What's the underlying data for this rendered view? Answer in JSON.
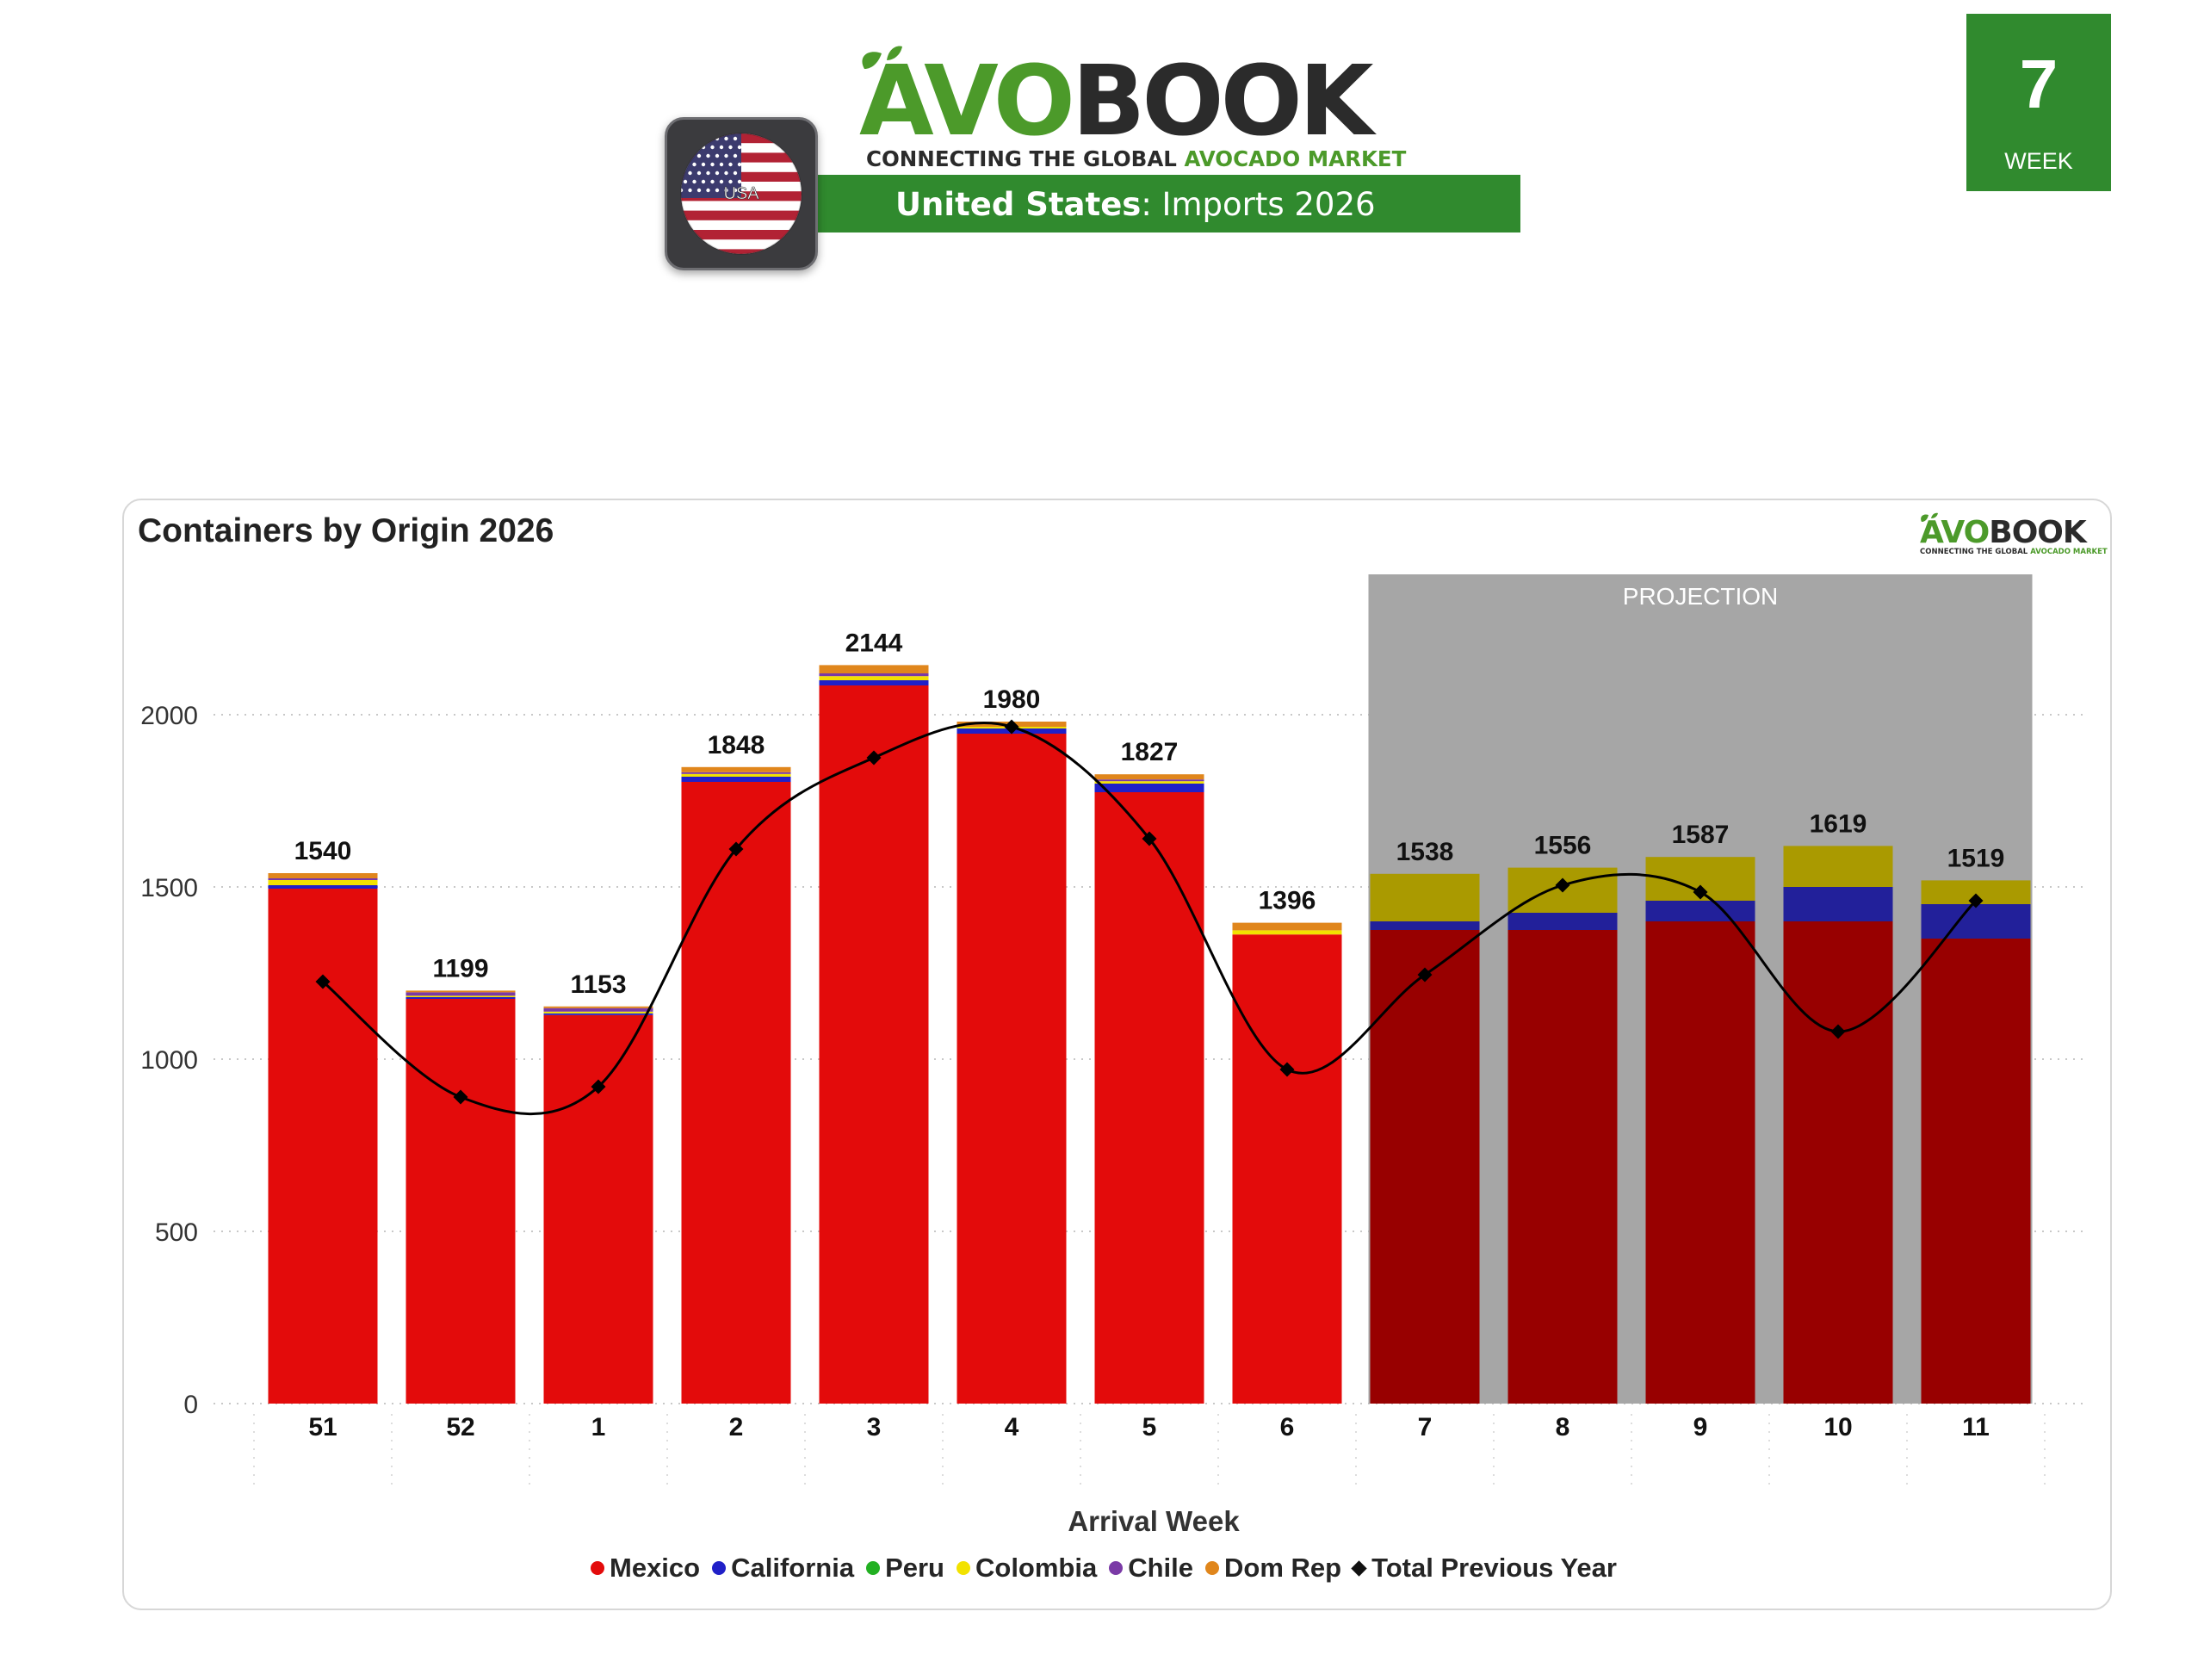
{
  "header": {
    "logo_avo": "AVO",
    "logo_book": "BOOK",
    "tagline_prefix": "CONNECTING THE GLOBAL ",
    "tagline_highlight": "AVOCADO MARKET",
    "title_country": "United States",
    "title_rest": ": Imports 2026",
    "flag_label": "USA",
    "week_number": "7",
    "week_label": "WEEK"
  },
  "colors": {
    "brand_green": "#308a2e",
    "logo_green": "#4c9a2a",
    "mexico": "#e30b0b",
    "mexico_projection": "#980000",
    "california": "#2020c8",
    "california_projection": "#22209a",
    "peru": "#22b022",
    "colombia": "#f2e200",
    "colombia_projection": "#aa9a00",
    "chile": "#7a3aa6",
    "dom_rep": "#e0861c",
    "previous_year": "#000000",
    "projection_band": "#a6a6a6"
  },
  "chart_data": {
    "type": "bar",
    "stacked": true,
    "title": "Containers by Origin 2026",
    "xlabel": "Arrival Week",
    "ylabel": "",
    "ylim": [
      0,
      2300
    ],
    "yticks": [
      0,
      500,
      1000,
      1500,
      2000
    ],
    "grid": true,
    "legend_position": "bottom",
    "projection_label": "PROJECTION",
    "projection_start_category": "7",
    "categories": [
      "51",
      "52",
      "1",
      "2",
      "3",
      "4",
      "5",
      "6",
      "7",
      "8",
      "9",
      "10",
      "11"
    ],
    "totals": [
      1540,
      1199,
      1153,
      1848,
      2144,
      1980,
      1827,
      1396,
      1538,
      1556,
      1587,
      1619,
      1519
    ],
    "series": [
      {
        "name": "Mexico",
        "values": [
          1495,
          1175,
          1128,
          1805,
          2085,
          1945,
          1775,
          1362,
          1375,
          1375,
          1400,
          1400,
          1350
        ]
      },
      {
        "name": "California",
        "values": [
          10,
          5,
          5,
          15,
          15,
          15,
          25,
          0,
          25,
          50,
          60,
          100,
          100
        ]
      },
      {
        "name": "Peru",
        "values": [
          0,
          0,
          0,
          0,
          0,
          0,
          0,
          0,
          0,
          0,
          0,
          0,
          0
        ]
      },
      {
        "name": "Colombia",
        "values": [
          15,
          4,
          5,
          8,
          12,
          5,
          7,
          12,
          138,
          131,
          127,
          119,
          69
        ]
      },
      {
        "name": "Chile",
        "values": [
          5,
          10,
          10,
          5,
          8,
          0,
          5,
          0,
          0,
          0,
          0,
          0,
          0
        ]
      },
      {
        "name": "Dom Rep",
        "values": [
          15,
          5,
          5,
          15,
          24,
          15,
          15,
          22,
          0,
          0,
          0,
          0,
          0
        ]
      }
    ],
    "line_series": {
      "name": "Total Previous Year",
      "values": [
        1225,
        890,
        920,
        1610,
        1875,
        1965,
        1640,
        970,
        1245,
        1505,
        1485,
        1080,
        1460
      ]
    }
  },
  "mini_logo": {
    "avo": "AVO",
    "book": "BOOK",
    "tagline_prefix": "CONNECTING THE GLOBAL ",
    "tagline_highlight": "AVOCADO MARKET"
  }
}
